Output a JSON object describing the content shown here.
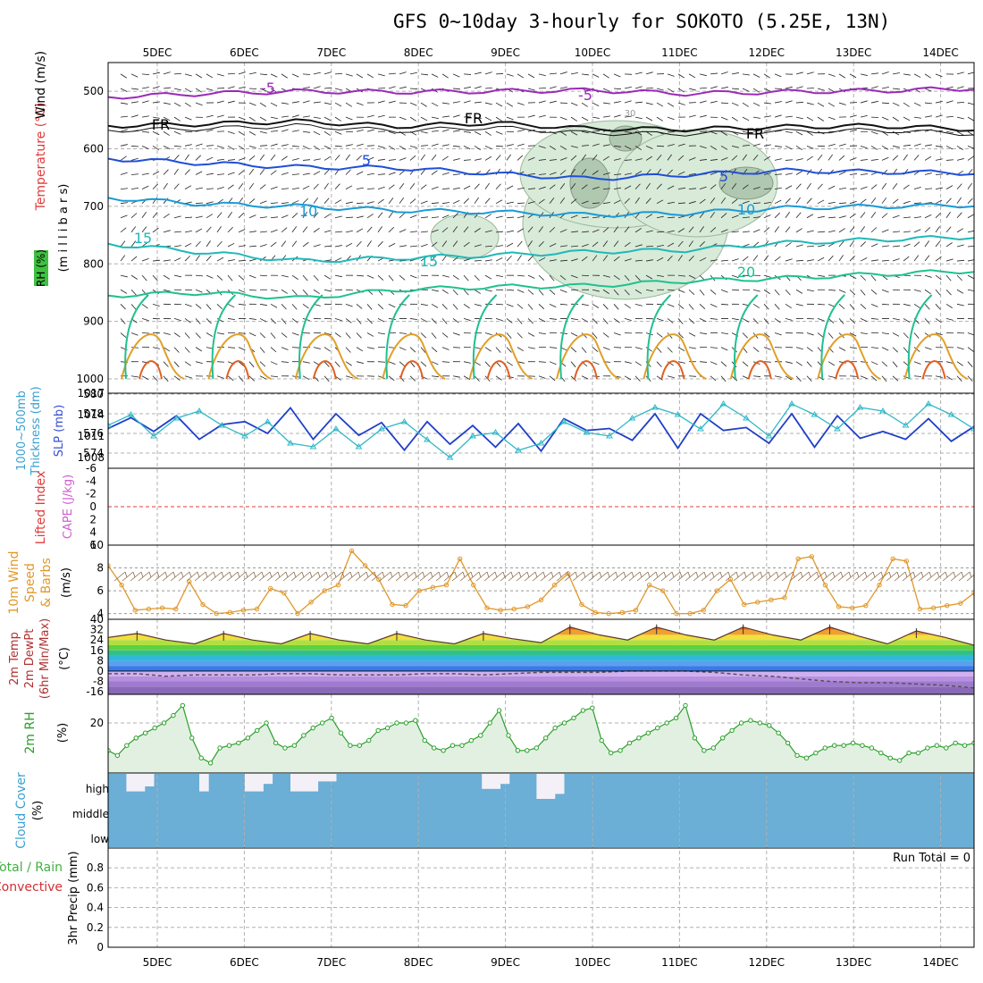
{
  "title": "GFS 0~10day 3-hourly for SOKOTO (5.25E, 13N)",
  "dates": [
    "5DEC",
    "6DEC",
    "7DEC",
    "8DEC",
    "9DEC",
    "10DEC",
    "11DEC",
    "12DEC",
    "13DEC",
    "14DEC"
  ],
  "colors": {
    "upper_air_wind_label": "#000000",
    "upper_air_temp_label": "#e03c3c",
    "rh_box": "#40c040",
    "thickness_line": "#1f3fc8",
    "slp_line": "#30b8c8",
    "cape_label": "#d060d0",
    "wind_speed": "#e0982a",
    "rh2m": "#2aa02a",
    "cloud_fill": "#6baed6",
    "cloud_label": "#3aa0d0",
    "precip_label": "#d03030"
  },
  "chart_data": [
    {
      "type": "line",
      "panel": "upper-air cross section",
      "ylabel_parts": [
        "Wind (m/s)",
        "Temperature (°C)",
        "(m i l l i b a r s)",
        "RH (%)"
      ],
      "yticks": [
        "500",
        "600",
        "700",
        "800",
        "900",
        "1000"
      ],
      "ylim": [
        1000,
        450
      ],
      "contour_labels": [
        "-5",
        "-5",
        "FR",
        "FR",
        "FR",
        "5",
        "5",
        "10",
        "10",
        "15",
        "15",
        "20",
        "30"
      ],
      "series": [
        {
          "name": "-5",
          "values": [
            510,
            504,
            500,
            501,
            500,
            498,
            504,
            501,
            499,
            495
          ]
        },
        {
          "name": "FR",
          "values": [
            560,
            557,
            552,
            561,
            555,
            565,
            566,
            562,
            560,
            566
          ]
        },
        {
          "name": "5",
          "values": [
            617,
            625,
            632,
            633,
            643,
            652,
            645,
            638,
            640,
            642
          ]
        },
        {
          "name": "10",
          "values": [
            685,
            696,
            700,
            707,
            710,
            715,
            712,
            703,
            700,
            698
          ]
        },
        {
          "name": "15",
          "values": [
            765,
            780,
            795,
            790,
            785,
            779,
            776,
            764,
            758,
            753
          ]
        },
        {
          "name": "20",
          "values": [
            855,
            850,
            860,
            845,
            840,
            838,
            830,
            825,
            818,
            812
          ]
        }
      ]
    },
    {
      "type": "line",
      "panel": "thickness and sea-level pressure",
      "ylabel_left": "1000~500mb Thickness (dm)",
      "ylabel_right": "SLP (mb)",
      "yticks_left": [
        "574",
        "576",
        "578",
        "580"
      ],
      "yticks_right": [
        "1008",
        "1011",
        "1014",
        "1017"
      ],
      "ylim_left": [
        573,
        580
      ],
      "ylim_right": [
        1006.5,
        1017
      ],
      "series": [
        {
          "name": "1000~500mb Thickness",
          "values": [
            576.5,
            577.6,
            576.2,
            577.8,
            575.4,
            576.9,
            577.2,
            576.0,
            578.6,
            575.4,
            578.0,
            575.8,
            577.1,
            574.3,
            577.2,
            574.9,
            576.8,
            574.6,
            577.0,
            574.2,
            577.5,
            576.3,
            576.5,
            575.3,
            578.0,
            574.5,
            578.0,
            576.3,
            576.6,
            575.0,
            578.0,
            574.6,
            577.8,
            575.5,
            576.2,
            575.4,
            577.5,
            575.2,
            576.7
          ]
        },
        {
          "name": "SLP",
          "values": [
            1012.5,
            1014.0,
            1011.0,
            1013.5,
            1014.5,
            1012.5,
            1011.0,
            1013.0,
            1010.0,
            1009.5,
            1012.0,
            1009.5,
            1012.0,
            1013.0,
            1010.5,
            1008.0,
            1011.0,
            1011.5,
            1009.0,
            1010.0,
            1013.0,
            1011.5,
            1011.0,
            1013.5,
            1015.0,
            1014.0,
            1012.0,
            1015.5,
            1013.5,
            1011.0,
            1015.5,
            1014.0,
            1012.0,
            1015.0,
            1014.5,
            1012.5,
            1015.5,
            1014.0,
            1012.0
          ]
        }
      ]
    },
    {
      "type": "line",
      "panel": "lifted index and CAPE",
      "ylabel_left": "Lifted Index",
      "ylabel_right": "CAPE (J/kg)",
      "yticks": [
        "-6",
        "-4",
        "-2",
        "0",
        "2",
        "4",
        "6"
      ],
      "ylim": [
        6,
        -6
      ],
      "series": [
        {
          "name": "Lifted Index",
          "values": []
        }
      ]
    },
    {
      "type": "line",
      "panel": "10m wind",
      "ylabel": "10m Wind Speed & Barbs (m/s)",
      "ylabel_parts": [
        "10m Wind",
        "Speed",
        "& Barbs",
        "(m/s)"
      ],
      "yticks": [
        "4",
        "6",
        "8",
        "10"
      ],
      "ylim": [
        3.5,
        10
      ],
      "series": [
        {
          "name": "10m Wind Speed",
          "values": [
            8.2,
            6.5,
            4.3,
            4.4,
            4.5,
            4.4,
            6.8,
            4.8,
            4.0,
            4.1,
            4.3,
            4.4,
            6.2,
            5.8,
            4.0,
            5.0,
            6.0,
            6.5,
            9.5,
            8.2,
            7.0,
            4.8,
            4.7,
            6.0,
            6.3,
            6.5,
            8.8,
            6.5,
            4.5,
            4.3,
            4.4,
            4.6,
            5.2,
            6.5,
            7.5,
            4.8,
            4.1,
            4.0,
            4.1,
            4.3,
            6.5,
            6.0,
            4.0,
            4.0,
            4.3,
            6.0,
            7.0,
            4.8,
            5.0,
            5.2,
            5.4,
            8.8,
            9.0,
            6.5,
            4.6,
            4.5,
            4.7,
            6.5,
            8.8,
            8.6,
            4.4,
            4.5,
            4.7,
            4.9,
            5.8
          ]
        }
      ]
    },
    {
      "type": "area",
      "panel": "2m temperature and dew point",
      "ylabel_parts": [
        "2m Temp",
        "2m DewPt",
        "(6hr Min/Max)",
        "(°C)"
      ],
      "yticks": [
        "-16",
        "-8",
        "0",
        "8",
        "16",
        "24",
        "32",
        "40"
      ],
      "ylim": [
        -18,
        40
      ],
      "series": [
        {
          "name": "2m Temp",
          "values": [
            26,
            29,
            24,
            21,
            29,
            24,
            21,
            29,
            24,
            21,
            29,
            24,
            21,
            29,
            25,
            22,
            34,
            28,
            24,
            34,
            28,
            24,
            34,
            28,
            24,
            34,
            27,
            21,
            31,
            26,
            20
          ]
        },
        {
          "name": "2m DewPt",
          "values": [
            -2,
            -2,
            -4,
            -3,
            -3,
            -3,
            -2,
            -2,
            -3,
            -3,
            -3,
            -2,
            -2,
            -3,
            -2,
            -1,
            -1,
            -1,
            0,
            0,
            0,
            -1,
            -3,
            -4,
            -6,
            -8,
            -9,
            -9,
            -10,
            -11,
            -13
          ]
        }
      ]
    },
    {
      "type": "area",
      "panel": "2m relative humidity",
      "ylabel_parts": [
        "2m RH",
        "(%)"
      ],
      "yticks": [
        "20"
      ],
      "ylim": [
        0,
        30
      ],
      "series": [
        {
          "name": "2m RH",
          "values": [
            9,
            7,
            11,
            14,
            16,
            18,
            20,
            23,
            27,
            14,
            6,
            4,
            10,
            11,
            12,
            14,
            17,
            20,
            12,
            10,
            11,
            15,
            18,
            20,
            22,
            16,
            11,
            11,
            13,
            17,
            18,
            20,
            20,
            21,
            13,
            10,
            9,
            11,
            11,
            13,
            15,
            20,
            25,
            15,
            9,
            9,
            10,
            14,
            18,
            20,
            22,
            25,
            26,
            13,
            8,
            9,
            12,
            14,
            16,
            18,
            20,
            22,
            27,
            14,
            9,
            10,
            14,
            17,
            20,
            21,
            20,
            19,
            16,
            12,
            7,
            6,
            8,
            10,
            11,
            11,
            12,
            11,
            10,
            8,
            6,
            5,
            8,
            8,
            10,
            11,
            10,
            12,
            11,
            12
          ]
        }
      ]
    },
    {
      "type": "bar",
      "panel": "cloud cover",
      "ylabel": "Cloud Cover (%)",
      "ylabel_parts": [
        "Cloud Cover",
        "(%)"
      ],
      "yticks": [
        "high",
        "middle",
        "low"
      ],
      "series": [
        {
          "name": "high",
          "values": [
            100,
            100,
            30,
            30,
            50,
            100,
            100,
            100,
            100,
            100,
            30,
            100,
            100,
            100,
            100,
            30,
            30,
            60,
            100,
            100,
            30,
            30,
            30,
            70,
            70,
            100,
            100,
            100,
            100,
            100,
            100,
            100,
            100,
            100,
            100,
            100,
            100,
            100,
            100,
            100,
            100,
            40,
            40,
            60,
            100,
            100,
            100,
            0,
            0,
            20,
            100,
            100,
            100,
            100,
            100,
            100,
            100,
            100,
            100,
            100,
            100,
            100,
            100,
            100,
            100,
            100,
            100,
            100,
            100,
            100,
            100,
            100,
            100,
            100,
            100,
            100,
            100,
            100,
            100,
            100,
            100,
            100,
            100,
            100,
            100,
            100,
            100,
            100,
            100,
            100,
            100,
            100,
            100,
            100,
            100
          ]
        },
        {
          "name": "middle",
          "values": []
        },
        {
          "name": "low",
          "values": []
        }
      ]
    },
    {
      "type": "bar",
      "panel": "3hr precipitation",
      "ylabel_parts": [
        "Total / Rain",
        "Convective",
        "3hr Precip (mm)"
      ],
      "yticks": [
        "0",
        "0.2",
        "0.4",
        "0.6",
        "0.8"
      ],
      "ylim": [
        0,
        0.9
      ],
      "run_total": "Run Total = 0",
      "series": [
        {
          "name": "3hr Precip",
          "values": []
        }
      ]
    }
  ]
}
